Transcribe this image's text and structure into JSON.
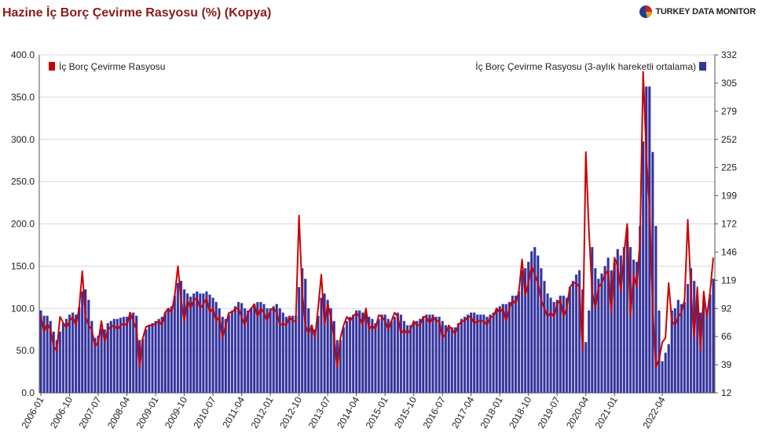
{
  "title": "Hazine İç Borç Çevirme Rasyosu (%) (Kopya)",
  "brand": {
    "name": "TURKEY DATA MONITOR",
    "icon": "pie-logo-icon"
  },
  "colors": {
    "line": "#cc0000",
    "bar": "#33339a",
    "bar_light": "#6f6fc6",
    "grid": "#d8d8d8",
    "title": "#8b1a1a"
  },
  "chart_data": {
    "type": "bar+line",
    "x_start": "2006-01",
    "x_end": "2022-04",
    "x_tick_labels": [
      "2006-01",
      "2006-10",
      "2007-07",
      "2008-04",
      "2009-01",
      "2009-10",
      "2010-07",
      "2011-04",
      "2012-01",
      "2012-10",
      "2013-07",
      "2014-04",
      "2015-01",
      "2015-10",
      "2016-07",
      "2017-04",
      "2018-01",
      "2018-10",
      "2019-07",
      "2020-04",
      "2021-01",
      "2022-04"
    ],
    "y_left": {
      "min": 0,
      "max": 400,
      "ticks": [
        "0.0",
        "50.0",
        "100.0",
        "150.0",
        "200.0",
        "250.0",
        "300.0",
        "350.0",
        "400.0"
      ]
    },
    "y_right": {
      "min": 12,
      "max": 332,
      "ticks": [
        "12",
        "39",
        "66",
        "92",
        "119",
        "146",
        "172",
        "199",
        "225",
        "252",
        "279",
        "305",
        "332"
      ]
    },
    "grid": true,
    "legend_left": "İç Borç Çevirme Rasyosu",
    "legend_right": "İç Borç Çevirme Rasyosu (3-aylık hareketli ortalama)",
    "series": [
      {
        "name": "İç Borç Çevirme Rasyosu",
        "type": "line",
        "axis": "left",
        "values": [
          90,
          72,
          82,
          75,
          55,
          50,
          90,
          83,
          77,
          85,
          90,
          80,
          100,
          144,
          90,
          80,
          75,
          55,
          60,
          85,
          60,
          75,
          78,
          80,
          75,
          80,
          82,
          80,
          95,
          85,
          75,
          30,
          65,
          78,
          80,
          80,
          82,
          85,
          80,
          95,
          100,
          95,
          115,
          150,
          110,
          85,
          110,
          100,
          110,
          112,
          100,
          105,
          112,
          95,
          100,
          85,
          90,
          65,
          80,
          95,
          95,
          100,
          100,
          90,
          80,
          95,
          100,
          105,
          90,
          100,
          95,
          85,
          98,
          100,
          95,
          80,
          82,
          80,
          90,
          85,
          85,
          210,
          120,
          80,
          70,
          80,
          65,
          100,
          140,
          80,
          105,
          90,
          65,
          30,
          65,
          80,
          90,
          85,
          90,
          95,
          90,
          80,
          100,
          75,
          80,
          75,
          92,
          90,
          85,
          75,
          85,
          95,
          90,
          70,
          75,
          70,
          75,
          85,
          80,
          80,
          90,
          90,
          82,
          90,
          85,
          85,
          65,
          70,
          80,
          75,
          70,
          80,
          85,
          85,
          90,
          90,
          82,
          85,
          85,
          85,
          80,
          90,
          90,
          100,
          95,
          100,
          85,
          100,
          110,
          105,
          120,
          158,
          115,
          130,
          150,
          140,
          130,
          110,
          100,
          90,
          95,
          90,
          105,
          110,
          90,
          100,
          125,
          130,
          130,
          125,
          50,
          285,
          190,
          120,
          100,
          125,
          130,
          140,
          145,
          95,
          160,
          150,
          120,
          165,
          200,
          90,
          140,
          125,
          180,
          380,
          280,
          220,
          100,
          30,
          40,
          60,
          65,
          130,
          85,
          80,
          90,
          95,
          110,
          205,
          120,
          65,
          125,
          50,
          120,
          90,
          120,
          160
        ]
      },
      {
        "name": "İç Borç Çevirme Rasyosu (3-aylık hareketli ortalama)",
        "type": "bar",
        "axis": "right",
        "values": [
          90,
          85,
          85,
          80,
          70,
          62,
          70,
          78,
          82,
          86,
          88,
          86,
          93,
          108,
          110,
          100,
          80,
          64,
          66,
          73,
          72,
          78,
          80,
          82,
          82,
          83,
          84,
          84,
          88,
          88,
          85,
          62,
          63,
          72,
          76,
          78,
          80,
          82,
          84,
          88,
          92,
          94,
          104,
          116,
          118,
          110,
          106,
          103,
          106,
          108,
          106,
          106,
          108,
          105,
          102,
          98,
          92,
          84,
          82,
          86,
          90,
          94,
          98,
          97,
          92,
          90,
          92,
          96,
          98,
          98,
          96,
          92,
          92,
          94,
          96,
          92,
          88,
          84,
          85,
          85,
          85,
          112,
          130,
          120,
          92,
          76,
          72,
          85,
          102,
          106,
          100,
          92,
          80,
          62,
          62,
          74,
          80,
          84,
          86,
          90,
          90,
          88,
          88,
          84,
          82,
          78,
          82,
          86,
          86,
          82,
          80,
          84,
          88,
          86,
          80,
          76,
          76,
          78,
          80,
          82,
          84,
          86,
          86,
          86,
          84,
          84,
          80,
          76,
          74,
          74,
          74,
          78,
          82,
          84,
          86,
          88,
          88,
          86,
          86,
          86,
          84,
          86,
          88,
          92,
          94,
          96,
          96,
          98,
          104,
          104,
          108,
          128,
          130,
          136,
          146,
          150,
          142,
          130,
          118,
          106,
          102,
          98,
          100,
          104,
          104,
          102,
          112,
          118,
          124,
          128,
          110,
          60,
          90,
          150,
          130,
          120,
          125,
          132,
          140,
          128,
          135,
          148,
          142,
          150,
          168,
          150,
          138,
          136,
          170,
          250,
          302,
          302,
          240,
          170,
          90,
          42,
          50,
          58,
          90,
          92,
          100,
          96,
          98,
          115,
          130,
          118,
          100,
          88,
          98,
          88,
          105,
          120
        ]
      }
    ]
  }
}
